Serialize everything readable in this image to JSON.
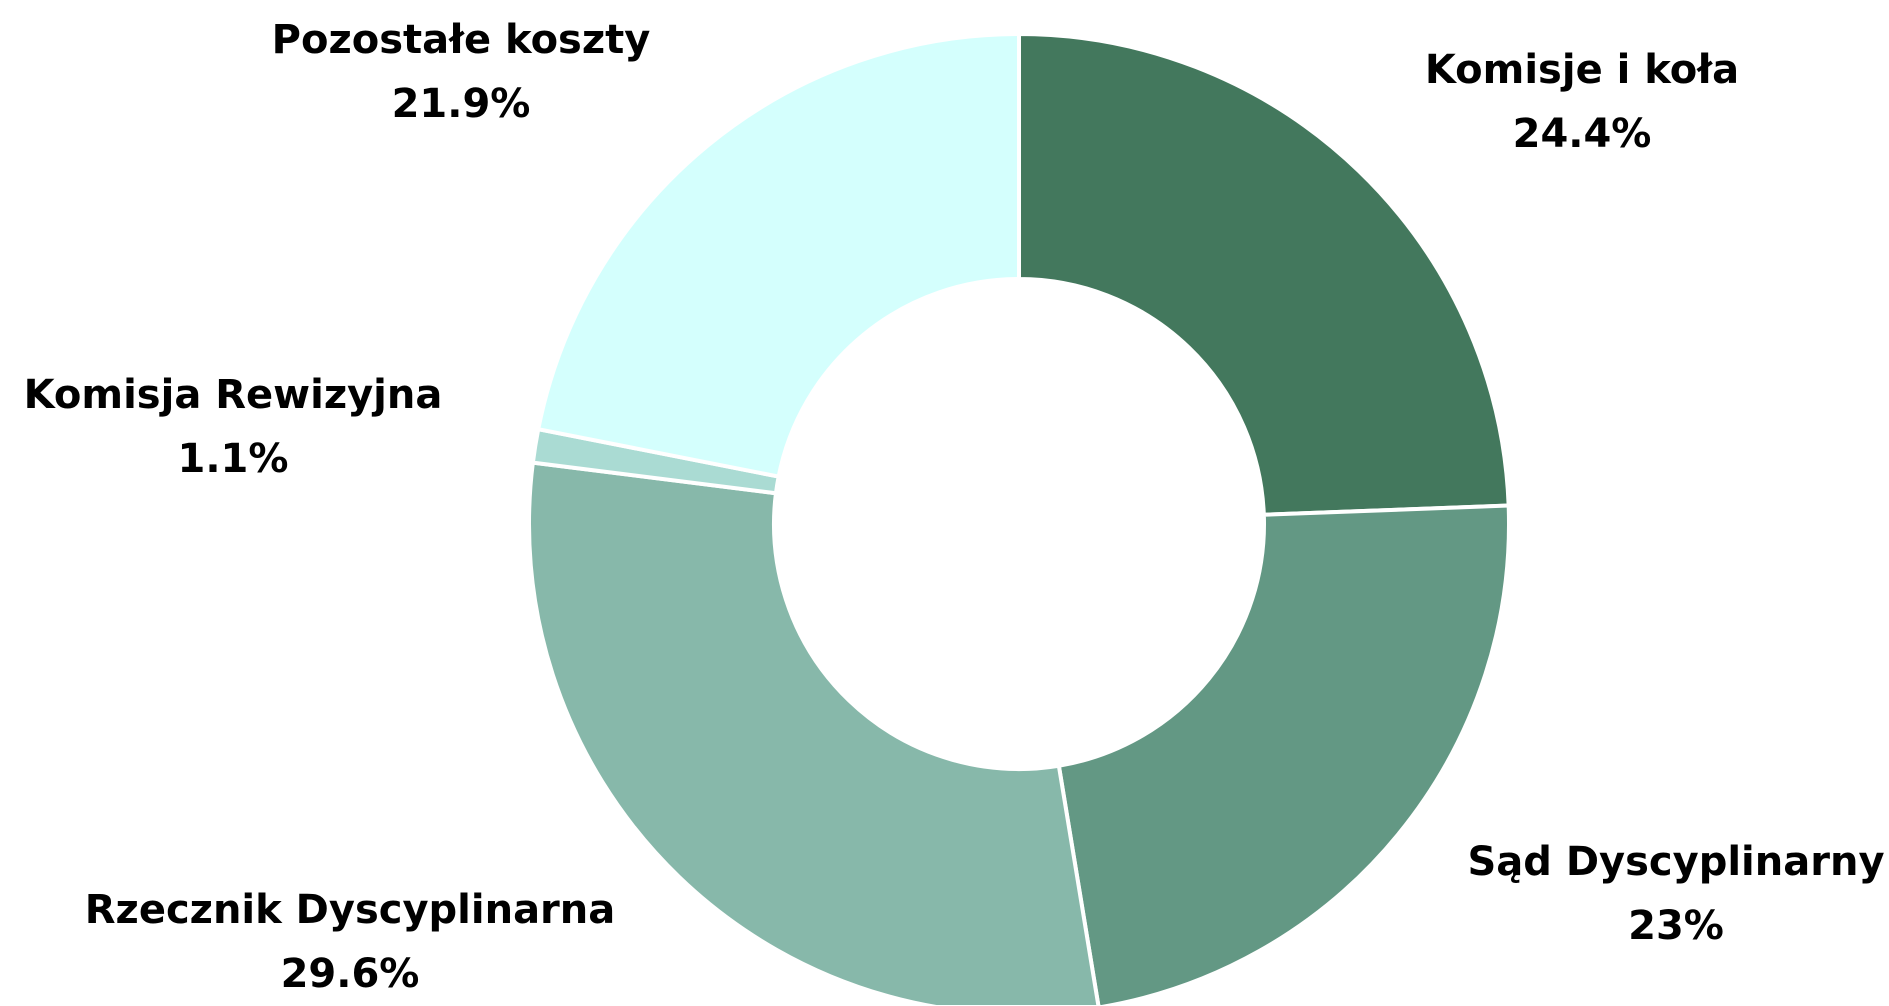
{
  "chart_data": {
    "type": "pie",
    "donut": true,
    "title": "",
    "slices": [
      {
        "label": "Komisje i koła",
        "value": 24.4,
        "display": "24.4%",
        "color": "#43785D"
      },
      {
        "label": "Sąd Dyscyplinarny",
        "value": 23.0,
        "display": "23%",
        "color": "#639884"
      },
      {
        "label": "Rzecznik Dyscyplinarna",
        "value": 29.6,
        "display": "29.6%",
        "color": "#87B8AA"
      },
      {
        "label": "Komisja Rewizyjna",
        "value": 1.1,
        "display": "1.1%",
        "color": "#AADBD3"
      },
      {
        "label": "Pozostałe koszty",
        "value": 21.9,
        "display": "21.9%",
        "color": "#D4FFFD"
      }
    ],
    "legend": "none"
  }
}
